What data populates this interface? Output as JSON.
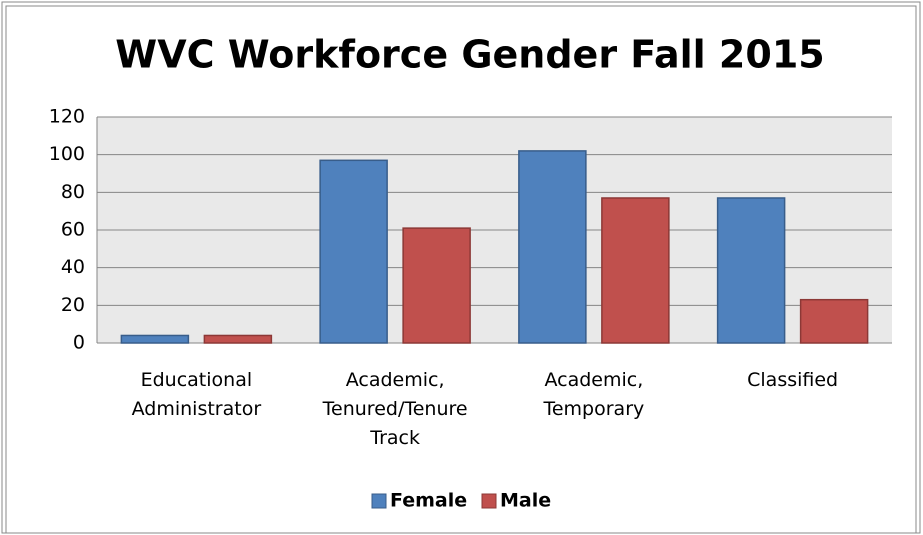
{
  "chart_data": {
    "type": "bar",
    "title": "WVC Workforce Gender Fall 2015",
    "categories": [
      "Educational Administrator",
      "Academic, Tenured/Tenure Track",
      "Academic, Temporary",
      "Classified"
    ],
    "series": [
      {
        "name": "Female",
        "color": "#4f81bd",
        "values": [
          4,
          97,
          102,
          77
        ]
      },
      {
        "name": "Male",
        "color": "#c0504d",
        "values": [
          4,
          61,
          77,
          23
        ]
      }
    ],
    "ylim": [
      0,
      120
    ],
    "yticks": [
      0,
      20,
      40,
      60,
      80,
      100,
      120
    ],
    "grid": true,
    "legend": "bottom"
  }
}
